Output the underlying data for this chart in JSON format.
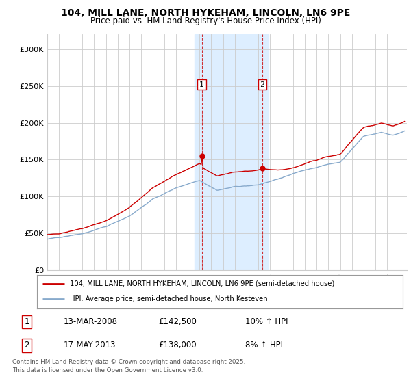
{
  "title_line1": "104, MILL LANE, NORTH HYKEHAM, LINCOLN, LN6 9PE",
  "title_line2": "Price paid vs. HM Land Registry's House Price Index (HPI)",
  "xlim_start": 1995.0,
  "xlim_end": 2025.7,
  "ylim_min": 0,
  "ylim_max": 320000,
  "purchase1_year": 2008.2,
  "purchase1_price": 142500,
  "purchase2_year": 2013.37,
  "purchase2_price": 138000,
  "shade_start": 2007.6,
  "shade_end": 2013.9,
  "line1_label": "104, MILL LANE, NORTH HYKEHAM, LINCOLN, LN6 9PE (semi-detached house)",
  "line2_label": "HPI: Average price, semi-detached house, North Kesteven",
  "table_row1": [
    "1",
    "13-MAR-2008",
    "£142,500",
    "10% ↑ HPI"
  ],
  "table_row2": [
    "2",
    "17-MAY-2013",
    "£138,000",
    "8% ↑ HPI"
  ],
  "footnote": "Contains HM Land Registry data © Crown copyright and database right 2025.\nThis data is licensed under the Open Government Licence v3.0.",
  "bg_color": "#ffffff",
  "grid_color": "#cccccc",
  "line1_color": "#cc0000",
  "line2_color": "#88aacc",
  "shade_color": "#ddeeff",
  "yticks": [
    0,
    50000,
    100000,
    150000,
    200000,
    250000,
    300000
  ],
  "ytick_labels": [
    "£0",
    "£50K",
    "£100K",
    "£150K",
    "£200K",
    "£250K",
    "£300K"
  ],
  "xticks": [
    1995,
    1996,
    1997,
    1998,
    1999,
    2000,
    2001,
    2002,
    2003,
    2004,
    2005,
    2006,
    2007,
    2008,
    2009,
    2010,
    2011,
    2012,
    2013,
    2014,
    2015,
    2016,
    2017,
    2018,
    2019,
    2020,
    2021,
    2022,
    2023,
    2024,
    2025
  ]
}
